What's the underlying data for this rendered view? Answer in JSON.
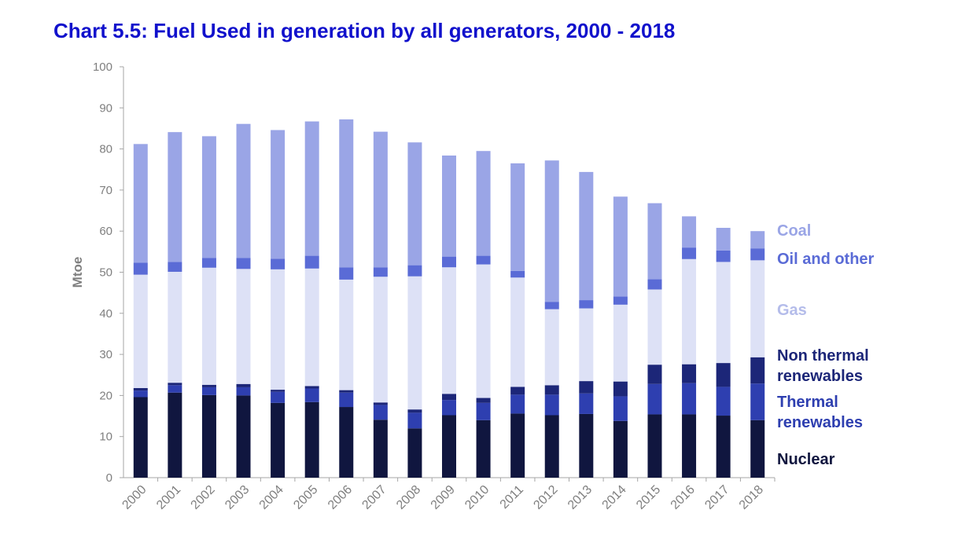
{
  "title": "Chart 5.5: Fuel Used in generation by all generators, 2000 - 2018",
  "chart_data": {
    "type": "bar",
    "stacked": true,
    "ylabel": "Mtoe",
    "ylim": [
      0,
      100
    ],
    "yticks": [
      0,
      10,
      20,
      30,
      40,
      50,
      60,
      70,
      80,
      90,
      100
    ],
    "grid": false,
    "legend_position": "right",
    "categories": [
      "2000",
      "2001",
      "2002",
      "2003",
      "2004",
      "2005",
      "2006",
      "2007",
      "2008",
      "2009",
      "2010",
      "2011",
      "2012",
      "2013",
      "2014",
      "2015",
      "2016",
      "2017",
      "2018"
    ],
    "series": [
      {
        "name": "Nuclear",
        "color": "#10163f",
        "values": [
          19.6,
          20.7,
          20.1,
          20.0,
          18.2,
          18.4,
          17.2,
          14.1,
          12.0,
          15.2,
          14.0,
          15.6,
          15.2,
          15.5,
          13.8,
          15.4,
          15.4,
          15.1,
          14.0
        ]
      },
      {
        "name": "Thermal renewables",
        "color": "#2e3fb0",
        "values": [
          1.6,
          1.8,
          1.9,
          2.0,
          2.7,
          3.3,
          3.5,
          3.6,
          3.8,
          3.7,
          4.2,
          4.6,
          5.0,
          5.0,
          6.0,
          7.4,
          7.6,
          7.0,
          8.9
        ]
      },
      {
        "name": "Non thermal renewables",
        "color": "#1c2678",
        "values": [
          0.6,
          0.6,
          0.6,
          0.8,
          0.5,
          0.6,
          0.6,
          0.6,
          0.8,
          1.5,
          1.2,
          1.9,
          2.3,
          3.0,
          3.6,
          4.7,
          4.6,
          5.8,
          6.4
        ]
      },
      {
        "name": "Gas",
        "color": "#dde1f6",
        "values": [
          27.6,
          27.0,
          28.5,
          28.0,
          29.3,
          28.6,
          26.9,
          30.6,
          32.4,
          30.8,
          32.5,
          26.6,
          18.5,
          17.7,
          18.7,
          18.3,
          25.6,
          24.6,
          23.6
        ]
      },
      {
        "name": "Oil and other",
        "color": "#5a6bd6",
        "values": [
          2.9,
          2.4,
          2.4,
          2.7,
          2.6,
          3.1,
          3.0,
          2.3,
          2.7,
          2.6,
          2.1,
          1.6,
          1.8,
          2.0,
          2.0,
          2.5,
          2.8,
          2.8,
          2.9
        ]
      },
      {
        "name": "Coal",
        "color": "#9aa5e6",
        "values": [
          28.9,
          31.6,
          29.6,
          32.6,
          31.3,
          32.7,
          36.0,
          33.0,
          29.9,
          24.6,
          25.5,
          26.2,
          34.4,
          31.2,
          24.3,
          18.5,
          7.6,
          5.5,
          4.2
        ]
      }
    ]
  }
}
